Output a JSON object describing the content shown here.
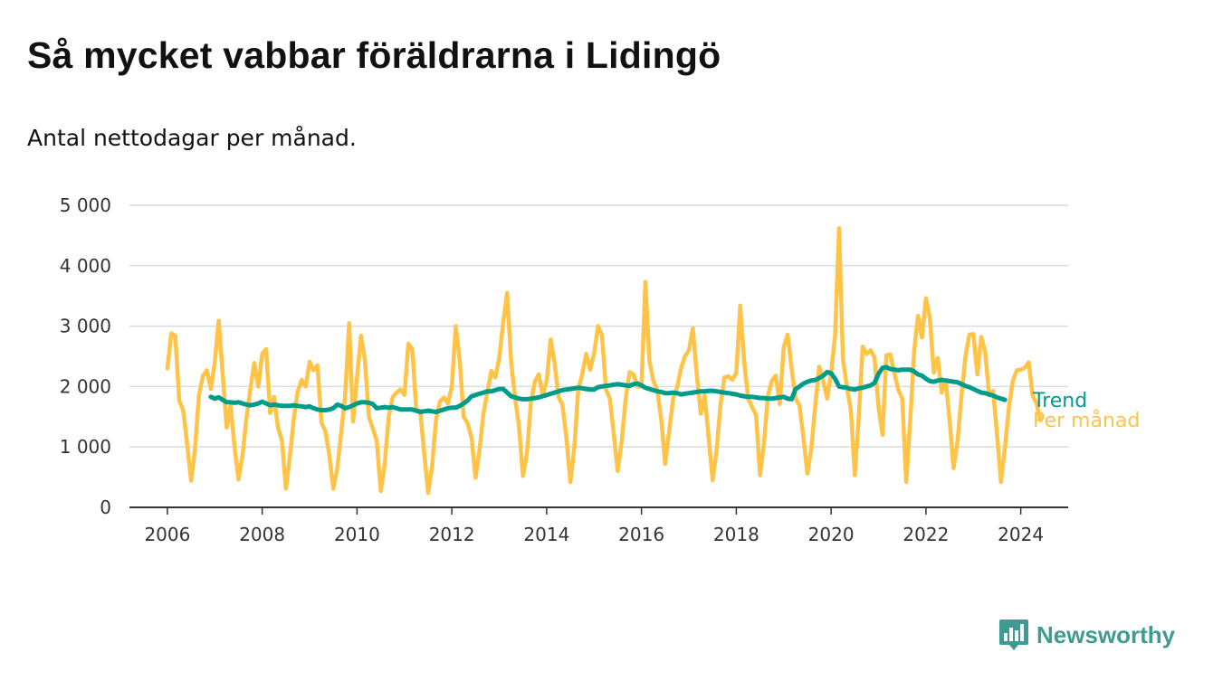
{
  "title": "Så mycket vabbar föräldrarna i Lidingö",
  "subtitle": "Antal nettodagar per månad.",
  "brand": {
    "name": "Newsworthy",
    "icon": "bar-chart-bubble-icon",
    "color": "#3f9a92"
  },
  "colors": {
    "trend": "#009b89",
    "monthly": "#ffc447",
    "grid": "#dcdcdc",
    "axis": "#333333"
  },
  "chart_data": {
    "type": "line",
    "xlabel": "",
    "ylabel": "",
    "xlim": [
      2005.2,
      2025.0
    ],
    "ylim": [
      0,
      5000
    ],
    "x_ticks": [
      2006,
      2008,
      2010,
      2012,
      2014,
      2016,
      2018,
      2020,
      2022,
      2024
    ],
    "x_tick_labels": [
      "2006",
      "2008",
      "2010",
      "2012",
      "2014",
      "2016",
      "2018",
      "2020",
      "2022",
      "2024"
    ],
    "y_ticks": [
      0,
      1000,
      2000,
      3000,
      4000,
      5000
    ],
    "y_tick_labels": [
      "0",
      "1 000",
      "2 000",
      "3 000",
      "4 000",
      "5 000"
    ],
    "grid": true,
    "legend": "direct labels at line ends",
    "series": [
      {
        "name": "Per månad",
        "x_start": 2006.0,
        "x_step": 0.0833333,
        "values": [
          2300,
          2880,
          2840,
          1770,
          1600,
          1050,
          440,
          980,
          1860,
          2180,
          2270,
          1960,
          2400,
          3090,
          2200,
          1320,
          1680,
          1000,
          460,
          850,
          1470,
          1960,
          2390,
          2000,
          2540,
          2620,
          1560,
          1830,
          1320,
          1100,
          310,
          840,
          1480,
          1920,
          2110,
          2000,
          2410,
          2270,
          2350,
          1400,
          1260,
          860,
          310,
          650,
          1240,
          1850,
          3050,
          1420,
          2150,
          2840,
          2440,
          1500,
          1300,
          1100,
          270,
          700,
          1490,
          1820,
          1900,
          1950,
          1860,
          2710,
          2620,
          1600,
          1600,
          900,
          240,
          680,
          1450,
          1750,
          1820,
          1720,
          2000,
          3000,
          2420,
          1500,
          1390,
          1140,
          490,
          950,
          1560,
          1900,
          2260,
          2150,
          2470,
          3060,
          3550,
          2420,
          1820,
          1340,
          520,
          900,
          1720,
          2080,
          2200,
          1860,
          2100,
          2780,
          2400,
          1830,
          1700,
          1150,
          420,
          980,
          1950,
          2200,
          2540,
          2280,
          2540,
          3000,
          2850,
          1950,
          1800,
          1200,
          600,
          1100,
          1800,
          2240,
          2200,
          2000,
          2000,
          3730,
          2430,
          2100,
          1940,
          1450,
          720,
          1260,
          1800,
          1980,
          2300,
          2500,
          2600,
          2960,
          2200,
          1550,
          1850,
          1160,
          450,
          940,
          1700,
          2150,
          2170,
          2110,
          2230,
          3340,
          2410,
          1800,
          1660,
          1530,
          530,
          1050,
          1850,
          2100,
          2180,
          1710,
          2650,
          2860,
          2300,
          1800,
          1690,
          1150,
          560,
          980,
          1700,
          2330,
          2100,
          1800,
          2220,
          2840,
          4620,
          2450,
          1990,
          1600,
          530,
          1500,
          2660,
          2540,
          2600,
          2480,
          1660,
          1200,
          2520,
          2530,
          2220,
          1950,
          1800,
          420,
          1400,
          2580,
          3170,
          2810,
          3460,
          3140,
          2230,
          2470,
          1900,
          2100,
          1430,
          650,
          1100,
          1850,
          2500,
          2860,
          2870,
          2200,
          2820,
          2580,
          1850,
          1930,
          1200,
          420,
          1000,
          1650,
          2100,
          2270,
          2280,
          2310,
          2400,
          1850,
          1720,
          1440
        ]
      },
      {
        "name": "Trend",
        "x_start": 2006.9167,
        "x_step": 0.0833333,
        "values": [
          1830,
          1800,
          1820,
          1780,
          1740,
          1740,
          1730,
          1740,
          1720,
          1700,
          1690,
          1700,
          1720,
          1750,
          1720,
          1690,
          1700,
          1690,
          1680,
          1680,
          1680,
          1690,
          1680,
          1670,
          1660,
          1670,
          1640,
          1620,
          1610,
          1610,
          1620,
          1640,
          1700,
          1680,
          1640,
          1660,
          1690,
          1720,
          1740,
          1740,
          1730,
          1710,
          1640,
          1650,
          1660,
          1650,
          1660,
          1640,
          1620,
          1620,
          1620,
          1620,
          1600,
          1580,
          1590,
          1600,
          1590,
          1580,
          1600,
          1620,
          1640,
          1650,
          1650,
          1680,
          1720,
          1770,
          1840,
          1860,
          1880,
          1900,
          1920,
          1920,
          1940,
          1960,
          1960,
          1900,
          1840,
          1820,
          1800,
          1790,
          1790,
          1800,
          1810,
          1820,
          1840,
          1860,
          1880,
          1900,
          1920,
          1940,
          1950,
          1960,
          1970,
          1980,
          1970,
          1960,
          1950,
          1950,
          1990,
          2000,
          2010,
          2020,
          2030,
          2040,
          2030,
          2020,
          2010,
          2040,
          2050,
          2020,
          1980,
          1960,
          1940,
          1920,
          1910,
          1890,
          1890,
          1900,
          1890,
          1870,
          1880,
          1890,
          1900,
          1910,
          1920,
          1920,
          1930,
          1930,
          1920,
          1910,
          1900,
          1890,
          1880,
          1870,
          1850,
          1840,
          1830,
          1830,
          1820,
          1810,
          1810,
          1800,
          1800,
          1810,
          1820,
          1830,
          1800,
          1790,
          1960,
          2000,
          2050,
          2080,
          2100,
          2110,
          2140,
          2180,
          2240,
          2220,
          2130,
          2000,
          1990,
          1980,
          1960,
          1950,
          1970,
          1980,
          2000,
          2020,
          2060,
          2210,
          2310,
          2320,
          2290,
          2280,
          2270,
          2280,
          2280,
          2280,
          2250,
          2200,
          2180,
          2130,
          2090,
          2080,
          2100,
          2110,
          2100,
          2090,
          2080,
          2070,
          2040,
          2010,
          1990,
          1960,
          1930,
          1900,
          1890,
          1870,
          1850,
          1820,
          1800,
          1780
        ]
      }
    ]
  }
}
